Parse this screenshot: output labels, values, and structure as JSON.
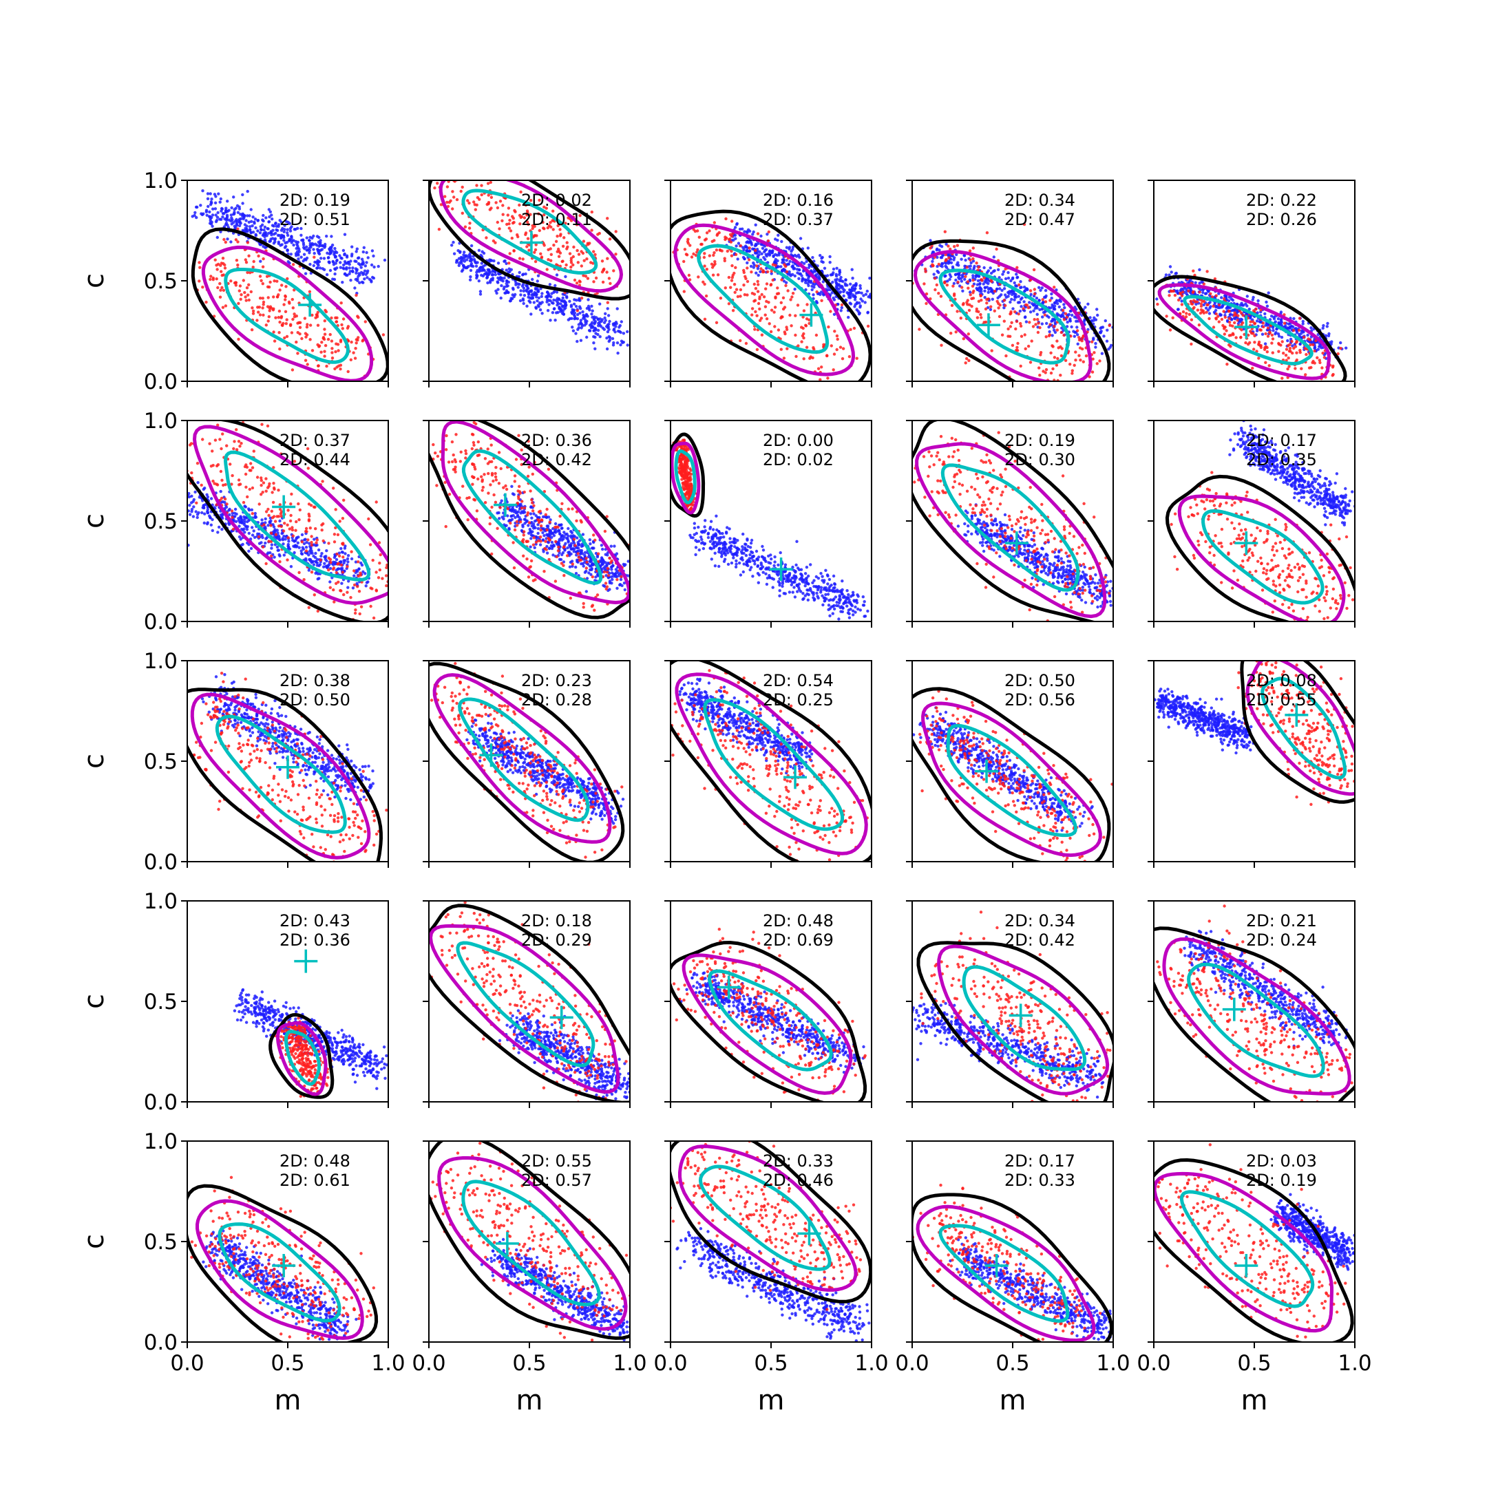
{
  "chart_data": {
    "type": "scatter",
    "grid": false,
    "layout": {
      "rows": 5,
      "cols": 5
    },
    "xlabel": "m",
    "ylabel": "c",
    "xlim": [
      0.0,
      1.0
    ],
    "ylim": [
      0.0,
      1.0
    ],
    "x_ticks": [
      "0.0",
      "0.5",
      "1.0"
    ],
    "y_ticks": [
      "0.0",
      "0.5",
      "1.0"
    ],
    "x_tick_values": [
      0.0,
      0.5,
      1.0
    ],
    "y_tick_values": [
      0.0,
      0.5,
      1.0
    ],
    "colors": {
      "blue_points": "#1f1fff",
      "red_points": "#ff1f1f",
      "outer_contour": "#000000",
      "magenta_contour": "#bf00bf",
      "cyan_contour": "#00bfbf",
      "marker": "#00bfbf"
    },
    "panels": [
      {
        "labels": [
          "2D: 0.19",
          "2D: 0.51"
        ],
        "marker": [
          0.61,
          0.38
        ],
        "blue": {
          "x0": 0.05,
          "y0": 0.88,
          "x1": 0.95,
          "y1": 0.52,
          "w": 0.09
        },
        "red": {
          "x0": 0.08,
          "y0": 0.62,
          "x1": 0.9,
          "y1": 0.05,
          "w": 0.22
        }
      },
      {
        "labels": [
          "2D: 0.02",
          "2D: 0.11"
        ],
        "marker": [
          0.51,
          0.69
        ],
        "blue": {
          "x0": 0.1,
          "y0": 0.65,
          "x1": 1.0,
          "y1": 0.2,
          "w": 0.08
        },
        "red": {
          "x0": 0.05,
          "y0": 1.0,
          "x1": 0.95,
          "y1": 0.5,
          "w": 0.18
        }
      },
      {
        "labels": [
          "2D: 0.16",
          "2D: 0.37"
        ],
        "marker": [
          0.7,
          0.33
        ],
        "blue": {
          "x0": 0.3,
          "y0": 0.72,
          "x1": 1.0,
          "y1": 0.38,
          "w": 0.09
        },
        "red": {
          "x0": 0.05,
          "y0": 0.75,
          "x1": 0.9,
          "y1": 0.08,
          "w": 0.24
        }
      },
      {
        "labels": [
          "2D: 0.34",
          "2D: 0.47"
        ],
        "marker": [
          0.38,
          0.28
        ],
        "blue": {
          "x0": 0.05,
          "y0": 0.65,
          "x1": 1.0,
          "y1": 0.2,
          "w": 0.09
        },
        "red": {
          "x0": 0.05,
          "y0": 0.6,
          "x1": 0.9,
          "y1": 0.05,
          "w": 0.24
        }
      },
      {
        "labels": [
          "2D: 0.22",
          "2D: 0.26"
        ],
        "marker": [
          0.46,
          0.27
        ],
        "blue": {
          "x0": 0.05,
          "y0": 0.5,
          "x1": 0.95,
          "y1": 0.15,
          "w": 0.07
        },
        "red": {
          "x0": 0.05,
          "y0": 0.45,
          "x1": 0.9,
          "y1": 0.05,
          "w": 0.13
        }
      },
      {
        "labels": [
          "2D: 0.37",
          "2D: 0.44"
        ],
        "marker": [
          0.48,
          0.57
        ],
        "blue": {
          "x0": 0.0,
          "y0": 0.62,
          "x1": 0.9,
          "y1": 0.2,
          "w": 0.09
        },
        "red": {
          "x0": 0.05,
          "y0": 0.92,
          "x1": 1.0,
          "y1": 0.1,
          "w": 0.24
        }
      },
      {
        "labels": [
          "2D: 0.36",
          "2D: 0.42"
        ],
        "marker": [
          0.38,
          0.58
        ],
        "blue": {
          "x0": 0.35,
          "y0": 0.58,
          "x1": 1.0,
          "y1": 0.2,
          "w": 0.09
        },
        "red": {
          "x0": 0.05,
          "y0": 0.95,
          "x1": 0.95,
          "y1": 0.1,
          "w": 0.22
        }
      },
      {
        "labels": [
          "2D: 0.00",
          "2D: 0.02"
        ],
        "marker": [
          0.55,
          0.26
        ],
        "blue": {
          "x0": 0.1,
          "y0": 0.45,
          "x1": 0.98,
          "y1": 0.05,
          "w": 0.08
        },
        "red": {
          "x0": 0.05,
          "y0": 0.9,
          "x1": 0.1,
          "y1": 0.55,
          "w": 0.03
        }
      },
      {
        "labels": [
          "2D: 0.19",
          "2D: 0.30"
        ],
        "marker": [
          0.52,
          0.39
        ],
        "blue": {
          "x0": 0.25,
          "y0": 0.52,
          "x1": 1.0,
          "y1": 0.1,
          "w": 0.08
        },
        "red": {
          "x0": 0.05,
          "y0": 0.88,
          "x1": 0.95,
          "y1": 0.08,
          "w": 0.24
        }
      },
      {
        "labels": [
          "2D: 0.17",
          "2D: 0.35"
        ],
        "marker": [
          0.46,
          0.39
        ],
        "blue": {
          "x0": 0.4,
          "y0": 0.93,
          "x1": 1.0,
          "y1": 0.52,
          "w": 0.08
        },
        "red": {
          "x0": 0.15,
          "y0": 0.6,
          "x1": 0.95,
          "y1": 0.05,
          "w": 0.22
        }
      },
      {
        "labels": [
          "2D: 0.38",
          "2D: 0.50"
        ],
        "marker": [
          0.5,
          0.47
        ],
        "blue": {
          "x0": 0.1,
          "y0": 0.85,
          "x1": 0.9,
          "y1": 0.35,
          "w": 0.1
        },
        "red": {
          "x0": 0.05,
          "y0": 0.8,
          "x1": 0.9,
          "y1": 0.05,
          "w": 0.23
        }
      },
      {
        "labels": [
          "2D: 0.23",
          "2D: 0.28"
        ],
        "marker": [
          0.31,
          0.53
        ],
        "blue": {
          "x0": 0.2,
          "y0": 0.65,
          "x1": 0.95,
          "y1": 0.25,
          "w": 0.08
        },
        "red": {
          "x0": 0.05,
          "y0": 0.9,
          "x1": 0.9,
          "y1": 0.1,
          "w": 0.2
        }
      },
      {
        "labels": [
          "2D: 0.54",
          "2D: 0.25"
        ],
        "marker": [
          0.62,
          0.42
        ],
        "blue": {
          "x0": 0.05,
          "y0": 0.85,
          "x1": 0.7,
          "y1": 0.5,
          "w": 0.08
        },
        "red": {
          "x0": 0.05,
          "y0": 0.9,
          "x1": 0.95,
          "y1": 0.05,
          "w": 0.24
        }
      },
      {
        "labels": [
          "2D: 0.50",
          "2D: 0.56"
        ],
        "marker": [
          0.37,
          0.45
        ],
        "blue": {
          "x0": 0.05,
          "y0": 0.7,
          "x1": 0.85,
          "y1": 0.2,
          "w": 0.08
        },
        "red": {
          "x0": 0.05,
          "y0": 0.75,
          "x1": 0.9,
          "y1": 0.05,
          "w": 0.22
        }
      },
      {
        "labels": [
          "2D: 0.08",
          "2D: 0.55"
        ],
        "marker": [
          0.71,
          0.73
        ],
        "blue": {
          "x0": 0.0,
          "y0": 0.82,
          "x1": 0.5,
          "y1": 0.6,
          "w": 0.07
        },
        "red": {
          "x0": 0.5,
          "y0": 1.0,
          "x1": 1.0,
          "y1": 0.35,
          "w": 0.18
        }
      },
      {
        "labels": [
          "2D: 0.43",
          "2D: 0.36"
        ],
        "marker": [
          0.59,
          0.7
        ],
        "blue": {
          "x0": 0.25,
          "y0": 0.5,
          "x1": 1.0,
          "y1": 0.15,
          "w": 0.08
        },
        "red": {
          "x0": 0.5,
          "y0": 0.4,
          "x1": 0.65,
          "y1": 0.05,
          "w": 0.08
        }
      },
      {
        "labels": [
          "2D: 0.18",
          "2D: 0.29"
        ],
        "marker": [
          0.66,
          0.42
        ],
        "blue": {
          "x0": 0.4,
          "y0": 0.4,
          "x1": 1.0,
          "y1": 0.05,
          "w": 0.09
        },
        "red": {
          "x0": 0.05,
          "y0": 0.88,
          "x1": 0.95,
          "y1": 0.1,
          "w": 0.22
        }
      },
      {
        "labels": [
          "2D: 0.48",
          "2D: 0.69"
        ],
        "marker": [
          0.29,
          0.57
        ],
        "blue": {
          "x0": 0.1,
          "y0": 0.6,
          "x1": 0.95,
          "y1": 0.2,
          "w": 0.08
        },
        "red": {
          "x0": 0.1,
          "y0": 0.7,
          "x1": 0.9,
          "y1": 0.1,
          "w": 0.22
        }
      },
      {
        "labels": [
          "2D: 0.34",
          "2D: 0.42"
        ],
        "marker": [
          0.54,
          0.43
        ],
        "blue": {
          "x0": 0.0,
          "y0": 0.45,
          "x1": 0.95,
          "y1": 0.1,
          "w": 0.09
        },
        "red": {
          "x0": 0.15,
          "y0": 0.72,
          "x1": 0.95,
          "y1": 0.08,
          "w": 0.24
        }
      },
      {
        "labels": [
          "2D: 0.21",
          "2D: 0.24"
        ],
        "marker": [
          0.4,
          0.46
        ],
        "blue": {
          "x0": 0.15,
          "y0": 0.8,
          "x1": 0.95,
          "y1": 0.3,
          "w": 0.09
        },
        "red": {
          "x0": 0.05,
          "y0": 0.75,
          "x1": 0.95,
          "y1": 0.05,
          "w": 0.24
        }
      },
      {
        "labels": [
          "2D: 0.48",
          "2D: 0.61"
        ],
        "marker": [
          0.48,
          0.38
        ],
        "blue": {
          "x0": 0.1,
          "y0": 0.5,
          "x1": 0.8,
          "y1": 0.05,
          "w": 0.09
        },
        "red": {
          "x0": 0.05,
          "y0": 0.65,
          "x1": 0.85,
          "y1": 0.05,
          "w": 0.22
        }
      },
      {
        "labels": [
          "2D: 0.55",
          "2D: 0.57"
        ],
        "marker": [
          0.39,
          0.49
        ],
        "blue": {
          "x0": 0.3,
          "y0": 0.45,
          "x1": 1.0,
          "y1": 0.05,
          "w": 0.08
        },
        "red": {
          "x0": 0.05,
          "y0": 0.9,
          "x1": 0.95,
          "y1": 0.1,
          "w": 0.24
        }
      },
      {
        "labels": [
          "2D: 0.33",
          "2D: 0.46"
        ],
        "marker": [
          0.69,
          0.54
        ],
        "blue": {
          "x0": 0.05,
          "y0": 0.5,
          "x1": 1.0,
          "y1": 0.05,
          "w": 0.1
        },
        "red": {
          "x0": 0.05,
          "y0": 0.95,
          "x1": 0.9,
          "y1": 0.3,
          "w": 0.22
        }
      },
      {
        "labels": [
          "2D: 0.17",
          "2D: 0.33"
        ],
        "marker": [
          0.42,
          0.38
        ],
        "blue": {
          "x0": 0.2,
          "y0": 0.45,
          "x1": 1.0,
          "y1": 0.05,
          "w": 0.08
        },
        "red": {
          "x0": 0.05,
          "y0": 0.65,
          "x1": 0.9,
          "y1": 0.05,
          "w": 0.2
        }
      },
      {
        "labels": [
          "2D: 0.03",
          "2D: 0.19"
        ],
        "marker": [
          0.46,
          0.38
        ],
        "blue": {
          "x0": 0.6,
          "y0": 0.65,
          "x1": 1.0,
          "y1": 0.42,
          "w": 0.08
        },
        "red": {
          "x0": 0.05,
          "y0": 0.82,
          "x1": 0.9,
          "y1": 0.1,
          "w": 0.24
        }
      }
    ]
  }
}
